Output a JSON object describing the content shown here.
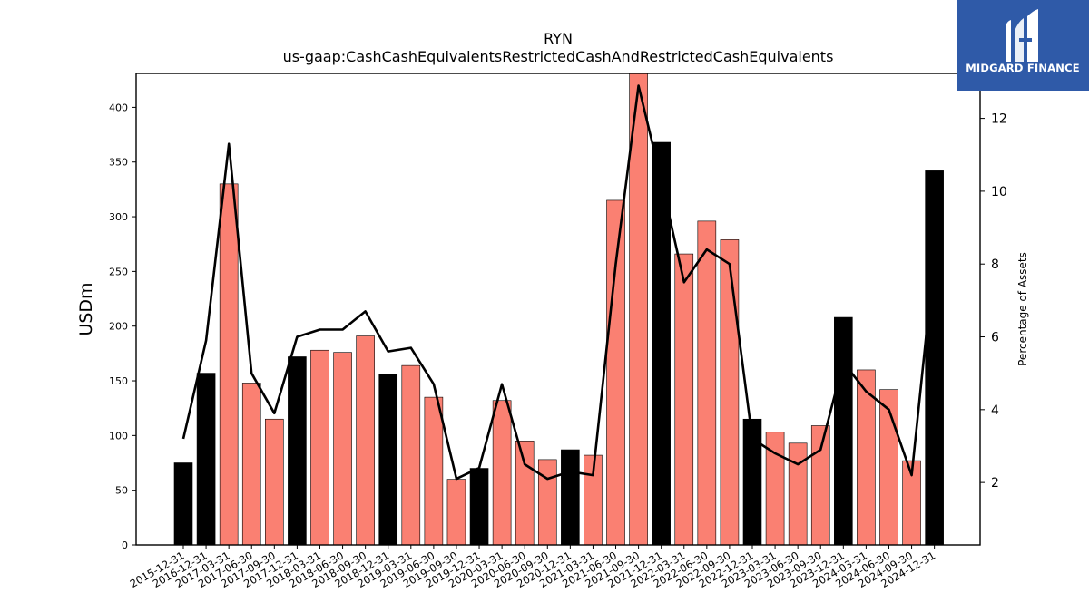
{
  "chart_data": {
    "type": "bar",
    "title": "RYN",
    "subtitle": "us-gaap:CashCashEquivalentsRestrictedCashAndRestrictedCashEquivalents",
    "ylabel": "USDm",
    "y2label": "Percentage of Assets",
    "ylim": [
      0,
      400
    ],
    "y_ticks": [
      0,
      50,
      100,
      150,
      200,
      250,
      300,
      350,
      400
    ],
    "y2_ticks": [
      2,
      4,
      6,
      8,
      10,
      12
    ],
    "grid": false,
    "categories": [
      "2015-12-31",
      "2016-12-31",
      "2017-03-31",
      "2017-06-30",
      "2017-09-30",
      "2017-12-31",
      "2018-03-31",
      "2018-06-30",
      "2018-09-30",
      "2018-12-31",
      "2019-03-31",
      "2019-06-30",
      "2019-09-30",
      "2019-12-31",
      "2020-03-31",
      "2020-06-30",
      "2020-09-30",
      "2020-12-31",
      "2021-03-31",
      "2021-06-30",
      "2021-09-30",
      "2021-12-31",
      "2022-03-31",
      "2022-06-30",
      "2022-09-30",
      "2022-12-31",
      "2023-03-31",
      "2023-06-30",
      "2023-09-30",
      "2023-12-31",
      "2024-03-31",
      "2024-06-30",
      "2024-09-30",
      "2024-12-31"
    ],
    "series": [
      {
        "type": "bar",
        "values": [
          75,
          157,
          330,
          148,
          115,
          172,
          178,
          176,
          191,
          156,
          164,
          135,
          60,
          70,
          132,
          95,
          78,
          87,
          82,
          315,
          440,
          368,
          266,
          296,
          279,
          115,
          103,
          93,
          109,
          208,
          160,
          142,
          77,
          342
        ],
        "colors": [
          "#000000",
          "#000000",
          "#fa8072",
          "#fa8072",
          "#fa8072",
          "#000000",
          "#fa8072",
          "#fa8072",
          "#fa8072",
          "#000000",
          "#fa8072",
          "#fa8072",
          "#fa8072",
          "#000000",
          "#fa8072",
          "#fa8072",
          "#fa8072",
          "#000000",
          "#fa8072",
          "#fa8072",
          "#fa8072",
          "#000000",
          "#fa8072",
          "#fa8072",
          "#fa8072",
          "#000000",
          "#fa8072",
          "#fa8072",
          "#fa8072",
          "#000000",
          "#fa8072",
          "#fa8072",
          "#fa8072",
          "#000000"
        ]
      },
      {
        "type": "line",
        "axis": "right",
        "color": "#000000",
        "values": [
          3.2,
          5.9,
          11.3,
          5.0,
          3.9,
          6.0,
          6.2,
          6.2,
          6.7,
          5.6,
          5.7,
          4.7,
          2.1,
          2.4,
          4.7,
          2.5,
          2.1,
          2.3,
          2.2,
          8.0,
          12.9,
          10.3,
          7.5,
          8.4,
          8.0,
          3.2,
          2.8,
          2.5,
          2.9,
          5.3,
          4.5,
          4.0,
          2.2,
          8.2
        ]
      }
    ]
  },
  "logo": {
    "text": "MIDGARD FINANCE"
  }
}
